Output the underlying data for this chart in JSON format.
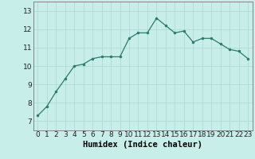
{
  "x": [
    0,
    1,
    2,
    3,
    4,
    5,
    6,
    7,
    8,
    9,
    10,
    11,
    12,
    13,
    14,
    15,
    16,
    17,
    18,
    19,
    20,
    21,
    22,
    23
  ],
  "y": [
    7.3,
    7.8,
    8.6,
    9.3,
    10.0,
    10.1,
    10.4,
    10.5,
    10.5,
    10.5,
    11.5,
    11.8,
    11.8,
    12.6,
    12.2,
    11.8,
    11.9,
    11.3,
    11.5,
    11.5,
    11.2,
    10.9,
    10.8,
    10.4
  ],
  "xlabel": "Humidex (Indice chaleur)",
  "xlim": [
    -0.5,
    23.5
  ],
  "ylim": [
    6.5,
    13.5
  ],
  "yticks": [
    7,
    8,
    9,
    10,
    11,
    12,
    13
  ],
  "xticks": [
    0,
    1,
    2,
    3,
    4,
    5,
    6,
    7,
    8,
    9,
    10,
    11,
    12,
    13,
    14,
    15,
    16,
    17,
    18,
    19,
    20,
    21,
    22,
    23
  ],
  "line_color": "#2a7a6e",
  "marker_color": "#2a7a6e",
  "bg_color": "#c8eeea",
  "grid_color": "#aad8d0",
  "xlabel_fontsize": 7.5,
  "tick_fontsize": 6.5
}
